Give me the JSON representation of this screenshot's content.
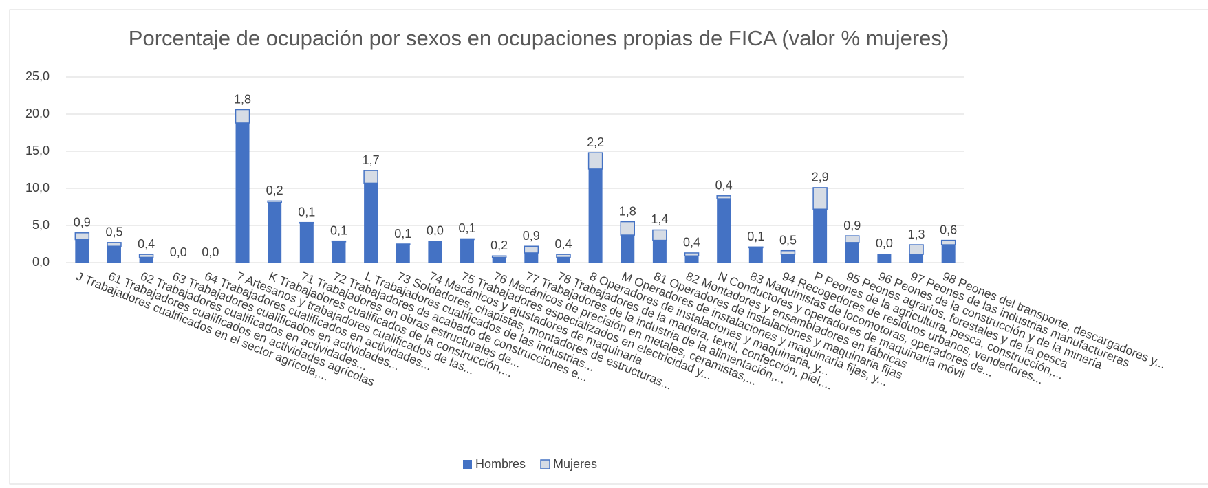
{
  "chart_data": {
    "type": "stacked_bar",
    "title": "Porcentaje de ocupación por sexos en ocupaciones propias de FICA (valor % mujeres)",
    "categories": [
      "J Trabajadores cualificados en el sector agrícola,...",
      "61 Trabajadores cualificados en actividades agrícolas",
      "62 Trabajadores cualificados en actividades...",
      "63 Trabajadores cualificados en actividades...",
      "64 Trabajadores cualificados en actividades...",
      "7 Artesanos y trabajadores cualificados de las...",
      "K Trabajadores cualificados de la construcción,...",
      "71 Trabajadores en obras estructurales de...",
      "72 Trabajadores de acabado de construcciones e...",
      "L Trabajadores cualificados de las industrias...",
      "73 Soldadores, chapistas, montadores de estructuras...",
      "74 Mecánicos y ajustadores de maquinaria",
      "75 Trabajadores especializados en electricidad y...",
      "76 Mecánicos de precisión en metales, ceramistas,...",
      "77 Trabajadores de la industria de la alimentación,...",
      "78 Trabajadores de la madera, textil, confección, piel,...",
      "8 Operadores de instalaciones y maquinaria, y...",
      "M Operadores de instalaciones y maquinaria fijas, y...",
      "81 Operadores de instalaciones y maquinaria fijas",
      "82 Montadores y ensambladores en fábricas",
      "N Conductores y operadores de maquinaria móvil",
      "83 Maquinistas de locomotoras, operadores de...",
      "94 Recogedores de residuos urbanos, vendedores...",
      "P Peones de la agricultura, pesca, construcción,...",
      "95 Peones agrarios, forestales y de la pesca",
      "96 Peones de la construcción y de la minería",
      "97 Peones de las industrias manufactureras",
      "98 Peones del transporte, descargadores y..."
    ],
    "series": [
      {
        "name": "Hombres",
        "color": "#4472c4",
        "values": [
          3.1,
          2.2,
          0.7,
          0,
          0,
          18.8,
          8.1,
          5.3,
          2.8,
          10.7,
          2.4,
          2.9,
          3.1,
          0.7,
          1.3,
          0.7,
          12.6,
          3.7,
          3.0,
          0.9,
          8.6,
          2.0,
          1.1,
          7.2,
          2.7,
          1.2,
          1.1,
          2.4
        ]
      },
      {
        "name": "Mujeres",
        "color": "#d6dce5",
        "values": [
          0.9,
          0.5,
          0.4,
          0,
          0,
          1.8,
          0.2,
          0.1,
          0.1,
          1.7,
          0.1,
          0,
          0.1,
          0.2,
          0.9,
          0.4,
          2.2,
          1.8,
          1.4,
          0.4,
          0.4,
          0.1,
          0.5,
          2.9,
          0.9,
          0,
          1.3,
          0.6
        ],
        "value_labels": [
          "0,9",
          "0,5",
          "0,4",
          "0,0",
          "0,0",
          "1,8",
          "0,2",
          "0,1",
          "0,1",
          "1,7",
          "0,1",
          "0,0",
          "0,1",
          "0,2",
          "0,9",
          "0,4",
          "2,2",
          "1,8",
          "1,4",
          "0,4",
          "0,4",
          "0,1",
          "0,5",
          "2,9",
          "0,9",
          "0,0",
          "1,3",
          "0,6"
        ]
      }
    ],
    "ylim": [
      0,
      25
    ],
    "yticks": [
      {
        "value": 0,
        "label": "0,0"
      },
      {
        "value": 5,
        "label": "5,0"
      },
      {
        "value": 10,
        "label": "10,0"
      },
      {
        "value": 15,
        "label": "15,0"
      },
      {
        "value": 20,
        "label": "20,0"
      },
      {
        "value": 25,
        "label": "25,0"
      }
    ],
    "grid": true,
    "legend": "bottom"
  }
}
